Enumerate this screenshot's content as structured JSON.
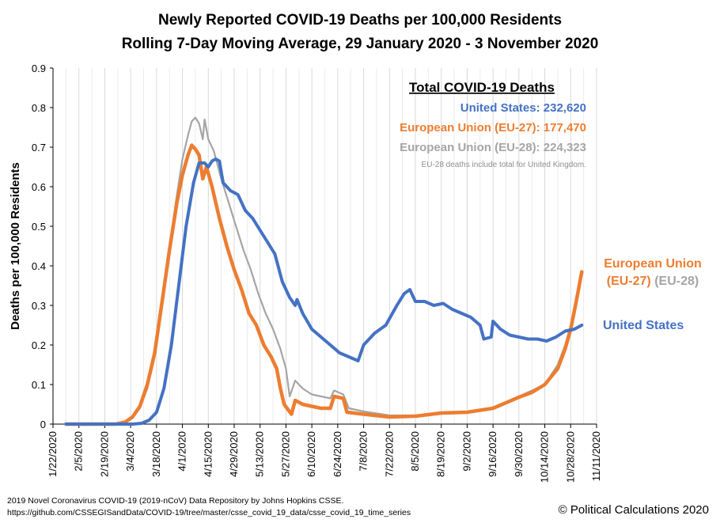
{
  "chart_data": {
    "type": "line",
    "title": "Newly Reported COVID-19 Deaths per 100,000 Residents",
    "subtitle": "Rolling 7-Day Moving Average, 29 January 2020 - 3 November 2020",
    "ylabel": "Deaths per 100,000 Residents",
    "xlabel": "",
    "ylim": [
      0,
      0.9
    ],
    "yticks": [
      "0",
      "0.1",
      "0.2",
      "0.3",
      "0.4",
      "0.5",
      "0.6",
      "0.7",
      "0.8",
      "0.9"
    ],
    "xlim": [
      "2020-01-22",
      "2020-11-11"
    ],
    "xticks": [
      "1/22/2020",
      "2/5/2020",
      "2/19/2020",
      "3/4/2020",
      "3/18/2020",
      "4/1/2020",
      "4/15/2020",
      "4/29/2020",
      "5/13/2020",
      "5/27/2020",
      "6/10/2020",
      "6/24/2020",
      "7/8/2020",
      "7/22/2020",
      "8/5/2020",
      "8/19/2020",
      "9/2/2020",
      "9/16/2020",
      "9/30/2020",
      "10/14/2020",
      "10/28/2020",
      "11/11/2020"
    ],
    "grid": "vertical",
    "series": [
      {
        "name": "European Union (EU-28)",
        "color": "#a5a5a5",
        "points": [
          [
            "2020-01-29",
            0
          ],
          [
            "2020-02-25",
            0
          ],
          [
            "2020-03-01",
            0.004
          ],
          [
            "2020-03-05",
            0.015
          ],
          [
            "2020-03-09",
            0.04
          ],
          [
            "2020-03-13",
            0.09
          ],
          [
            "2020-03-17",
            0.17
          ],
          [
            "2020-03-21",
            0.3
          ],
          [
            "2020-03-25",
            0.45
          ],
          [
            "2020-03-29",
            0.58
          ],
          [
            "2020-04-01",
            0.67
          ],
          [
            "2020-04-04",
            0.73
          ],
          [
            "2020-04-06",
            0.765
          ],
          [
            "2020-04-08",
            0.775
          ],
          [
            "2020-04-10",
            0.76
          ],
          [
            "2020-04-12",
            0.72
          ],
          [
            "2020-04-13",
            0.77
          ],
          [
            "2020-04-15",
            0.72
          ],
          [
            "2020-04-18",
            0.69
          ],
          [
            "2020-04-22",
            0.62
          ],
          [
            "2020-04-26",
            0.56
          ],
          [
            "2020-04-30",
            0.5
          ],
          [
            "2020-05-04",
            0.44
          ],
          [
            "2020-05-08",
            0.39
          ],
          [
            "2020-05-12",
            0.33
          ],
          [
            "2020-05-16",
            0.28
          ],
          [
            "2020-05-20",
            0.24
          ],
          [
            "2020-05-24",
            0.19
          ],
          [
            "2020-05-27",
            0.14
          ],
          [
            "2020-05-29",
            0.07
          ],
          [
            "2020-06-01",
            0.11
          ],
          [
            "2020-06-05",
            0.09
          ],
          [
            "2020-06-10",
            0.075
          ],
          [
            "2020-06-15",
            0.07
          ],
          [
            "2020-06-20",
            0.065
          ],
          [
            "2020-06-22",
            0.085
          ],
          [
            "2020-06-27",
            0.075
          ],
          [
            "2020-06-30",
            0.04
          ],
          [
            "2020-07-08",
            0.032
          ],
          [
            "2020-07-22",
            0.022
          ],
          [
            "2020-08-05",
            0.022
          ],
          [
            "2020-08-19",
            0.028
          ],
          [
            "2020-09-02",
            0.03
          ],
          [
            "2020-09-16",
            0.04
          ],
          [
            "2020-09-30",
            0.07
          ],
          [
            "2020-10-07",
            0.085
          ],
          [
            "2020-10-14",
            0.1
          ],
          [
            "2020-10-21",
            0.15
          ],
          [
            "2020-10-25",
            0.2
          ],
          [
            "2020-10-28",
            0.25
          ],
          [
            "2020-10-31",
            0.31
          ],
          [
            "2020-11-03",
            0.38
          ]
        ]
      },
      {
        "name": "European Union (EU-27)",
        "color": "#ed7d31",
        "points": [
          [
            "2020-01-29",
            0
          ],
          [
            "2020-02-25",
            0
          ],
          [
            "2020-03-01",
            0.005
          ],
          [
            "2020-03-05",
            0.018
          ],
          [
            "2020-03-09",
            0.045
          ],
          [
            "2020-03-13",
            0.1
          ],
          [
            "2020-03-17",
            0.18
          ],
          [
            "2020-03-21",
            0.31
          ],
          [
            "2020-03-25",
            0.44
          ],
          [
            "2020-03-29",
            0.56
          ],
          [
            "2020-04-01",
            0.63
          ],
          [
            "2020-04-04",
            0.68
          ],
          [
            "2020-04-06",
            0.705
          ],
          [
            "2020-04-08",
            0.695
          ],
          [
            "2020-04-10",
            0.68
          ],
          [
            "2020-04-12",
            0.62
          ],
          [
            "2020-04-14",
            0.65
          ],
          [
            "2020-04-17",
            0.6
          ],
          [
            "2020-04-21",
            0.52
          ],
          [
            "2020-04-25",
            0.45
          ],
          [
            "2020-04-29",
            0.39
          ],
          [
            "2020-05-03",
            0.34
          ],
          [
            "2020-05-07",
            0.28
          ],
          [
            "2020-05-11",
            0.25
          ],
          [
            "2020-05-15",
            0.2
          ],
          [
            "2020-05-19",
            0.17
          ],
          [
            "2020-05-22",
            0.14
          ],
          [
            "2020-05-24",
            0.09
          ],
          [
            "2020-05-26",
            0.05
          ],
          [
            "2020-05-30",
            0.025
          ],
          [
            "2020-06-01",
            0.06
          ],
          [
            "2020-06-05",
            0.05
          ],
          [
            "2020-06-10",
            0.045
          ],
          [
            "2020-06-15",
            0.04
          ],
          [
            "2020-06-20",
            0.04
          ],
          [
            "2020-06-22",
            0.07
          ],
          [
            "2020-06-27",
            0.065
          ],
          [
            "2020-06-29",
            0.03
          ],
          [
            "2020-07-08",
            0.025
          ],
          [
            "2020-07-22",
            0.018
          ],
          [
            "2020-08-05",
            0.02
          ],
          [
            "2020-08-19",
            0.028
          ],
          [
            "2020-09-02",
            0.03
          ],
          [
            "2020-09-16",
            0.04
          ],
          [
            "2020-09-30",
            0.068
          ],
          [
            "2020-10-07",
            0.08
          ],
          [
            "2020-10-14",
            0.1
          ],
          [
            "2020-10-21",
            0.14
          ],
          [
            "2020-10-25",
            0.19
          ],
          [
            "2020-10-28",
            0.24
          ],
          [
            "2020-10-31",
            0.31
          ],
          [
            "2020-11-03",
            0.385
          ]
        ]
      },
      {
        "name": "United States",
        "color": "#4472c4",
        "points": [
          [
            "2020-01-29",
            0
          ],
          [
            "2020-03-05",
            0
          ],
          [
            "2020-03-10",
            0.002
          ],
          [
            "2020-03-14",
            0.01
          ],
          [
            "2020-03-18",
            0.03
          ],
          [
            "2020-03-22",
            0.09
          ],
          [
            "2020-03-26",
            0.2
          ],
          [
            "2020-03-30",
            0.35
          ],
          [
            "2020-04-03",
            0.5
          ],
          [
            "2020-04-07",
            0.61
          ],
          [
            "2020-04-10",
            0.66
          ],
          [
            "2020-04-13",
            0.66
          ],
          [
            "2020-04-15",
            0.65
          ],
          [
            "2020-04-17",
            0.665
          ],
          [
            "2020-04-19",
            0.67
          ],
          [
            "2020-04-21",
            0.665
          ],
          [
            "2020-04-23",
            0.61
          ],
          [
            "2020-04-27",
            0.59
          ],
          [
            "2020-05-01",
            0.58
          ],
          [
            "2020-05-05",
            0.54
          ],
          [
            "2020-05-09",
            0.52
          ],
          [
            "2020-05-13",
            0.49
          ],
          [
            "2020-05-17",
            0.46
          ],
          [
            "2020-05-21",
            0.43
          ],
          [
            "2020-05-25",
            0.36
          ],
          [
            "2020-05-29",
            0.32
          ],
          [
            "2020-06-01",
            0.3
          ],
          [
            "2020-06-02",
            0.315
          ],
          [
            "2020-06-05",
            0.28
          ],
          [
            "2020-06-10",
            0.24
          ],
          [
            "2020-06-15",
            0.22
          ],
          [
            "2020-06-20",
            0.2
          ],
          [
            "2020-06-25",
            0.18
          ],
          [
            "2020-06-30",
            0.17
          ],
          [
            "2020-07-05",
            0.16
          ],
          [
            "2020-07-08",
            0.2
          ],
          [
            "2020-07-14",
            0.23
          ],
          [
            "2020-07-20",
            0.25
          ],
          [
            "2020-07-26",
            0.3
          ],
          [
            "2020-07-30",
            0.33
          ],
          [
            "2020-08-02",
            0.34
          ],
          [
            "2020-08-05",
            0.31
          ],
          [
            "2020-08-10",
            0.31
          ],
          [
            "2020-08-15",
            0.3
          ],
          [
            "2020-08-20",
            0.305
          ],
          [
            "2020-08-25",
            0.29
          ],
          [
            "2020-08-30",
            0.28
          ],
          [
            "2020-09-04",
            0.27
          ],
          [
            "2020-09-09",
            0.25
          ],
          [
            "2020-09-11",
            0.215
          ],
          [
            "2020-09-15",
            0.22
          ],
          [
            "2020-09-16",
            0.26
          ],
          [
            "2020-09-20",
            0.24
          ],
          [
            "2020-09-25",
            0.225
          ],
          [
            "2020-09-30",
            0.22
          ],
          [
            "2020-10-05",
            0.215
          ],
          [
            "2020-10-10",
            0.215
          ],
          [
            "2020-10-15",
            0.21
          ],
          [
            "2020-10-20",
            0.22
          ],
          [
            "2020-10-25",
            0.235
          ],
          [
            "2020-10-30",
            0.24
          ],
          [
            "2020-11-03",
            0.25
          ]
        ]
      }
    ]
  },
  "legend": {
    "heading": "Total COVID-19 Deaths",
    "us": "United States: 232,620",
    "eu27": "European Union (EU-27): 177,470",
    "eu28": "European Union (EU-28): 224,323",
    "note": "EU-28 deaths include total for United Kingdom."
  },
  "side_labels": {
    "eu_line1": "European Union",
    "eu27": "(EU-27)",
    "eu28": "(EU-28)",
    "us": "United States"
  },
  "footer": {
    "source": "2019 Novel Coronavirus COVID-19 (2019-nCoV) Data Repository by Johns Hopkins CSSE.",
    "url": "https://github.com/CSSEGISandData/COVID-19/tree/master/csse_covid_19_data/csse_covid_19_time_series",
    "copyright": "© Political Calculations 2020"
  },
  "colors": {
    "us": "#4472c4",
    "eu27": "#ed7d31",
    "eu28": "#a5a5a5",
    "grid": "#d9d9d9"
  }
}
